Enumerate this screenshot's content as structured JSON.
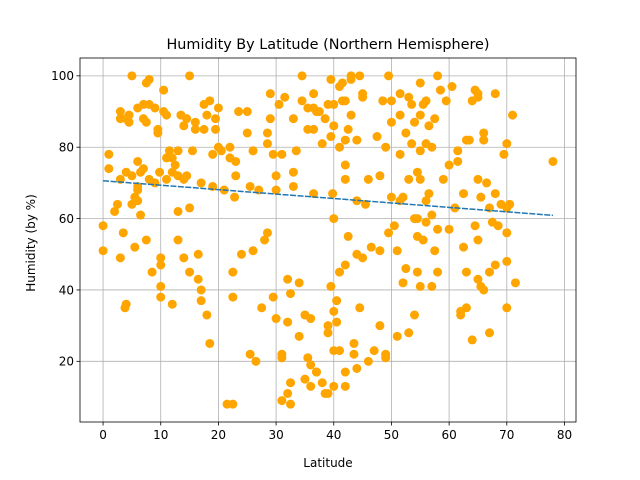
{
  "chart_data": {
    "type": "scatter",
    "title": "Humidity By Latitude (Northern Hemisphere)",
    "xlabel": "Latitude",
    "ylabel": "Humidity (by %)",
    "xlim": [
      -4,
      82
    ],
    "ylim": [
      3,
      105
    ],
    "xticks": [
      0,
      10,
      20,
      30,
      40,
      50,
      60,
      70,
      80
    ],
    "yticks": [
      20,
      40,
      60,
      80,
      100
    ],
    "grid": true,
    "point_color": "#ffa500",
    "line_color": "#1f77b4",
    "regression": {
      "x": [
        0,
        78
      ],
      "y": [
        70.6,
        60.9
      ]
    },
    "points": [
      [
        0,
        58
      ],
      [
        0,
        51
      ],
      [
        1,
        78
      ],
      [
        1,
        74
      ],
      [
        2,
        62
      ],
      [
        2.5,
        64
      ],
      [
        3,
        90
      ],
      [
        3,
        88
      ],
      [
        3,
        71
      ],
      [
        3,
        49
      ],
      [
        3.5,
        56
      ],
      [
        3.8,
        35
      ],
      [
        4,
        36
      ],
      [
        4,
        88
      ],
      [
        4,
        73
      ],
      [
        4.5,
        87
      ],
      [
        4.5,
        89
      ],
      [
        5,
        100
      ],
      [
        5,
        72
      ],
      [
        5,
        64
      ],
      [
        5.5,
        52
      ],
      [
        5.5,
        66
      ],
      [
        6,
        91
      ],
      [
        6,
        76
      ],
      [
        6,
        69
      ],
      [
        6,
        68
      ],
      [
        6,
        65
      ],
      [
        6.5,
        61
      ],
      [
        6.5,
        73
      ],
      [
        7,
        92
      ],
      [
        7,
        88
      ],
      [
        7,
        74
      ],
      [
        7.5,
        98
      ],
      [
        7.5,
        87
      ],
      [
        7.5,
        54
      ],
      [
        8,
        99
      ],
      [
        8,
        92
      ],
      [
        8,
        71
      ],
      [
        8.5,
        45
      ],
      [
        9,
        91
      ],
      [
        9,
        70
      ],
      [
        9.5,
        84
      ],
      [
        9.5,
        85
      ],
      [
        9.8,
        73
      ],
      [
        10,
        49
      ],
      [
        10,
        47
      ],
      [
        10,
        41
      ],
      [
        10,
        38
      ],
      [
        10.5,
        96
      ],
      [
        10.5,
        90
      ],
      [
        11,
        89
      ],
      [
        11,
        77
      ],
      [
        11,
        71
      ],
      [
        11.5,
        79
      ],
      [
        12,
        36
      ],
      [
        12,
        77
      ],
      [
        12,
        73
      ],
      [
        12.5,
        75
      ],
      [
        13,
        62
      ],
      [
        13,
        54
      ],
      [
        13,
        79
      ],
      [
        13,
        72
      ],
      [
        13.5,
        89
      ],
      [
        14,
        49
      ],
      [
        14,
        86
      ],
      [
        14,
        71
      ],
      [
        14.5,
        88
      ],
      [
        14.5,
        72
      ],
      [
        15,
        100
      ],
      [
        15,
        63
      ],
      [
        15,
        45
      ],
      [
        15.5,
        79
      ],
      [
        16,
        87
      ],
      [
        16,
        85
      ],
      [
        16.5,
        43
      ],
      [
        16.5,
        50
      ],
      [
        17,
        40
      ],
      [
        17,
        37
      ],
      [
        17,
        70
      ],
      [
        17.5,
        92
      ],
      [
        17.5,
        85
      ],
      [
        18,
        89
      ],
      [
        18,
        33
      ],
      [
        18.5,
        93
      ],
      [
        18.5,
        25
      ],
      [
        19,
        78
      ],
      [
        19,
        69
      ],
      [
        19.5,
        88
      ],
      [
        19.5,
        85
      ],
      [
        20,
        91
      ],
      [
        20,
        80
      ],
      [
        20.5,
        79
      ],
      [
        21,
        68
      ],
      [
        21.5,
        8
      ],
      [
        22,
        80
      ],
      [
        22,
        77
      ],
      [
        22.5,
        8
      ],
      [
        22.5,
        38
      ],
      [
        22.5,
        45
      ],
      [
        22.8,
        66
      ],
      [
        23,
        72
      ],
      [
        23,
        76
      ],
      [
        23.5,
        90
      ],
      [
        24,
        50
      ],
      [
        25,
        84
      ],
      [
        25,
        90
      ],
      [
        25.5,
        69
      ],
      [
        25.5,
        22
      ],
      [
        26,
        79
      ],
      [
        26,
        51
      ],
      [
        26.5,
        20
      ],
      [
        27,
        68
      ],
      [
        27.5,
        35
      ],
      [
        28,
        54
      ],
      [
        28.5,
        56
      ],
      [
        28.5,
        81
      ],
      [
        28.5,
        84
      ],
      [
        29,
        95
      ],
      [
        29,
        88
      ],
      [
        29.5,
        78
      ],
      [
        29.5,
        38
      ],
      [
        30,
        72
      ],
      [
        30,
        32
      ],
      [
        30,
        68
      ],
      [
        30.5,
        92
      ],
      [
        31,
        22
      ],
      [
        31,
        21
      ],
      [
        31,
        78
      ],
      [
        31,
        9
      ],
      [
        31.5,
        94
      ],
      [
        32,
        43
      ],
      [
        32,
        11
      ],
      [
        32,
        31
      ],
      [
        32.5,
        39
      ],
      [
        32.5,
        14
      ],
      [
        32.5,
        8
      ],
      [
        33,
        88
      ],
      [
        33,
        73
      ],
      [
        33,
        69
      ],
      [
        33.5,
        79
      ],
      [
        34,
        27
      ],
      [
        34,
        42
      ],
      [
        34.5,
        100
      ],
      [
        34.5,
        93
      ],
      [
        35,
        33
      ],
      [
        35,
        15
      ],
      [
        35.5,
        21
      ],
      [
        35.5,
        91
      ],
      [
        35.5,
        85
      ],
      [
        36,
        13
      ],
      [
        36,
        19
      ],
      [
        36,
        32
      ],
      [
        36.5,
        91
      ],
      [
        36.5,
        95
      ],
      [
        36.5,
        85
      ],
      [
        36.5,
        67
      ],
      [
        37,
        90
      ],
      [
        37,
        17
      ],
      [
        37,
        17
      ],
      [
        37.5,
        90
      ],
      [
        38,
        14
      ],
      [
        38,
        81
      ],
      [
        38.5,
        11
      ],
      [
        38.5,
        88
      ],
      [
        39,
        92
      ],
      [
        39,
        30
      ],
      [
        39,
        28
      ],
      [
        39,
        11
      ],
      [
        39.5,
        99
      ],
      [
        39.5,
        83
      ],
      [
        39.5,
        41
      ],
      [
        39.8,
        67
      ],
      [
        40,
        92
      ],
      [
        40,
        86
      ],
      [
        40,
        60
      ],
      [
        40,
        34
      ],
      [
        40,
        23
      ],
      [
        40,
        13
      ],
      [
        40.5,
        37
      ],
      [
        40.5,
        31
      ],
      [
        41,
        97
      ],
      [
        41,
        80
      ],
      [
        41,
        45
      ],
      [
        41,
        23
      ],
      [
        41.5,
        98
      ],
      [
        41.5,
        93
      ],
      [
        42,
        82
      ],
      [
        42,
        75
      ],
      [
        42,
        71
      ],
      [
        42,
        93
      ],
      [
        42,
        47
      ],
      [
        42,
        17
      ],
      [
        42,
        13
      ],
      [
        42.5,
        55
      ],
      [
        42.5,
        85
      ],
      [
        43,
        100
      ],
      [
        43,
        89
      ],
      [
        43,
        99
      ],
      [
        43.5,
        25
      ],
      [
        43.5,
        22
      ],
      [
        44,
        82
      ],
      [
        44,
        65
      ],
      [
        44,
        50
      ],
      [
        44,
        18
      ],
      [
        44.5,
        100
      ],
      [
        44.5,
        35
      ],
      [
        45,
        95
      ],
      [
        45,
        94
      ],
      [
        45,
        49
      ],
      [
        45.5,
        64
      ],
      [
        46,
        20
      ],
      [
        46,
        71
      ],
      [
        46.5,
        52
      ],
      [
        47,
        23
      ],
      [
        47.5,
        83
      ],
      [
        48,
        72
      ],
      [
        48,
        30
      ],
      [
        48,
        51
      ],
      [
        48.5,
        93
      ],
      [
        49,
        80
      ],
      [
        49,
        22
      ],
      [
        49,
        21
      ],
      [
        49.5,
        100
      ],
      [
        49.5,
        56
      ],
      [
        50,
        93
      ],
      [
        50,
        87
      ],
      [
        50,
        66
      ],
      [
        50.5,
        58
      ],
      [
        51,
        51
      ],
      [
        51,
        27
      ],
      [
        51.5,
        89
      ],
      [
        51.5,
        78
      ],
      [
        51.5,
        65
      ],
      [
        51.5,
        95
      ],
      [
        52,
        66
      ],
      [
        52,
        42
      ],
      [
        52.5,
        84
      ],
      [
        52.5,
        46
      ],
      [
        53,
        94
      ],
      [
        53,
        71
      ],
      [
        53,
        28
      ],
      [
        53.5,
        92
      ],
      [
        53.5,
        81
      ],
      [
        54,
        87
      ],
      [
        54,
        60
      ],
      [
        54,
        33
      ],
      [
        54.5,
        73
      ],
      [
        54.5,
        60
      ],
      [
        54.5,
        55
      ],
      [
        54.5,
        45
      ],
      [
        55,
        98
      ],
      [
        55,
        89
      ],
      [
        55,
        79
      ],
      [
        55,
        71
      ],
      [
        55,
        41
      ],
      [
        55.5,
        92
      ],
      [
        55.5,
        54
      ],
      [
        56,
        93
      ],
      [
        56,
        81
      ],
      [
        56,
        65
      ],
      [
        56,
        59
      ],
      [
        56.5,
        86
      ],
      [
        56.5,
        67
      ],
      [
        57,
        80
      ],
      [
        57,
        61
      ],
      [
        57,
        41
      ],
      [
        57.5,
        88
      ],
      [
        57.5,
        51
      ],
      [
        58,
        100
      ],
      [
        58,
        57
      ],
      [
        58,
        45
      ],
      [
        58.5,
        96
      ],
      [
        59,
        71
      ],
      [
        59.5,
        93
      ],
      [
        60,
        75
      ],
      [
        60,
        57
      ],
      [
        60.5,
        97
      ],
      [
        61,
        63
      ],
      [
        61.5,
        76
      ],
      [
        61.5,
        79
      ],
      [
        62,
        33
      ],
      [
        62,
        34
      ],
      [
        62.5,
        52
      ],
      [
        62.5,
        67
      ],
      [
        63,
        82
      ],
      [
        63,
        45
      ],
      [
        63,
        35
      ],
      [
        63.5,
        82
      ],
      [
        64,
        93
      ],
      [
        64,
        26
      ],
      [
        64.5,
        96
      ],
      [
        64.5,
        58
      ],
      [
        65,
        95
      ],
      [
        65,
        94
      ],
      [
        65,
        71
      ],
      [
        65,
        54
      ],
      [
        65,
        43
      ],
      [
        65.5,
        66
      ],
      [
        65.5,
        41
      ],
      [
        66,
        40
      ],
      [
        66,
        84
      ],
      [
        66,
        82
      ],
      [
        66.5,
        70
      ],
      [
        67,
        63
      ],
      [
        67,
        28
      ],
      [
        67,
        45
      ],
      [
        67.5,
        59
      ],
      [
        68,
        95
      ],
      [
        68,
        67
      ],
      [
        68,
        47
      ],
      [
        68.5,
        58
      ],
      [
        69,
        64
      ],
      [
        69.5,
        78
      ],
      [
        70,
        81
      ],
      [
        70,
        63
      ],
      [
        70,
        56
      ],
      [
        70,
        48
      ],
      [
        70,
        35
      ],
      [
        70.5,
        64
      ],
      [
        71,
        89
      ],
      [
        71.5,
        42
      ],
      [
        78,
        76
      ]
    ]
  }
}
